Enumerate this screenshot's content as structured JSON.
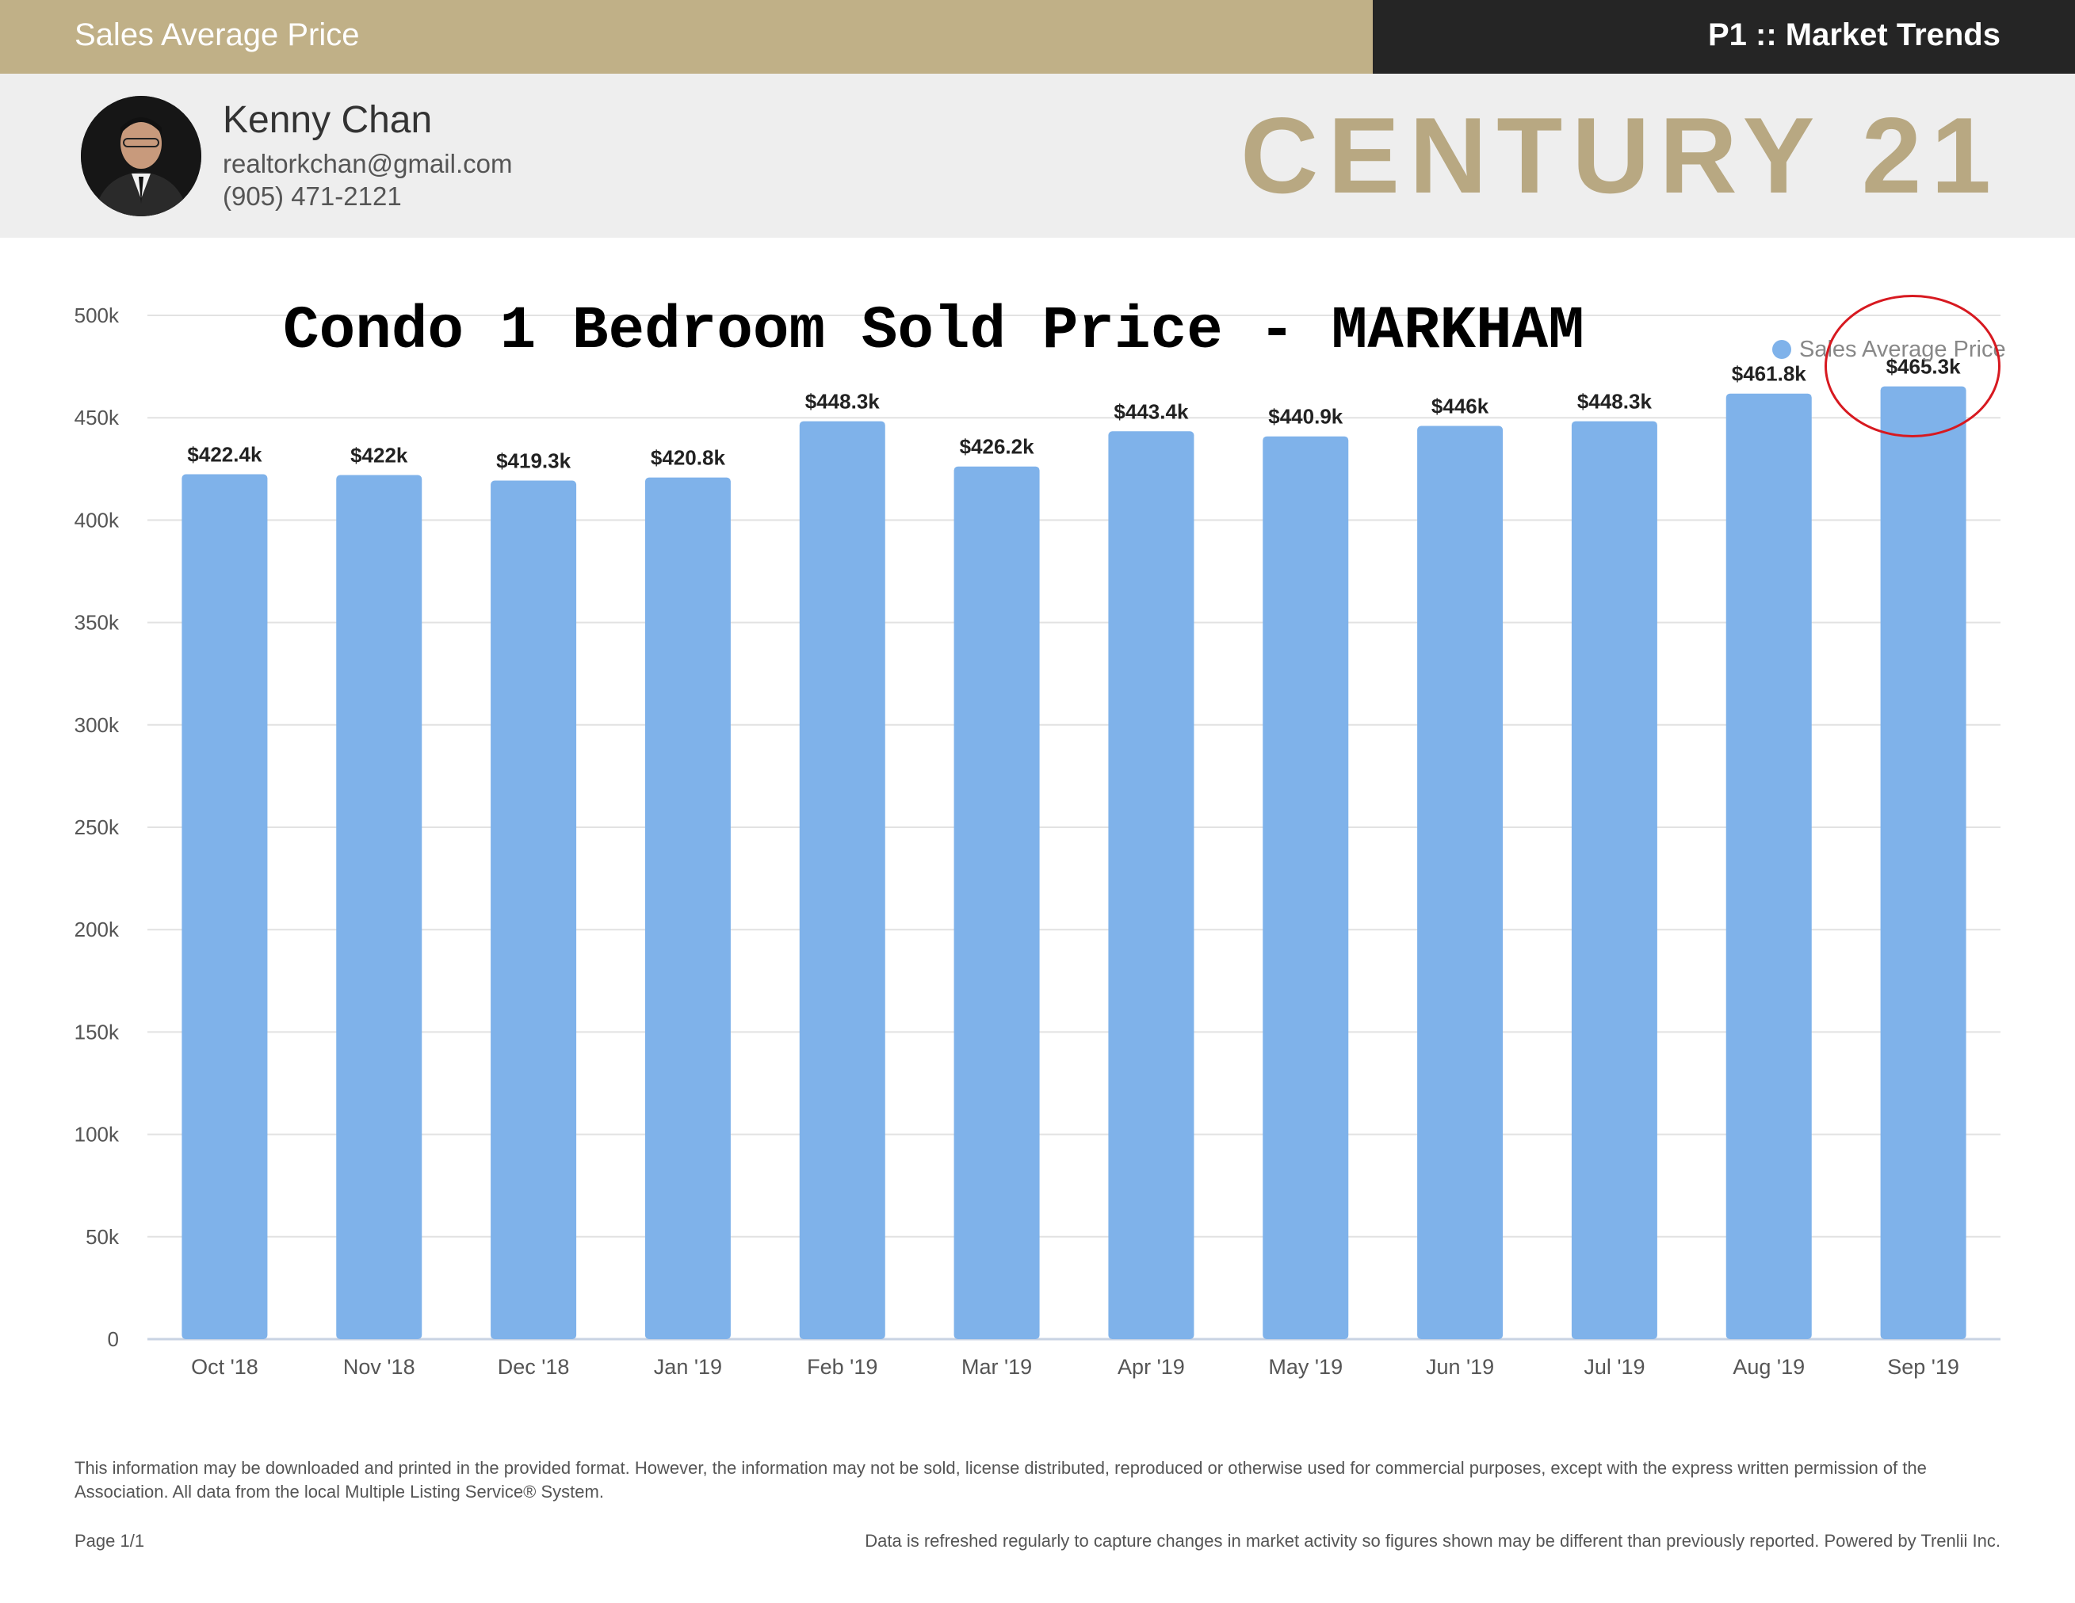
{
  "header": {
    "title": "Sales Average Price",
    "section": "P1 :: Market Trends"
  },
  "agent": {
    "name": "Kenny Chan",
    "email": "realtorkchan@gmail.com",
    "phone": "(905) 471-2121"
  },
  "brand": {
    "logo_text": "CENTURY 21",
    "logo_color": "#b8a882"
  },
  "colors": {
    "gold": "#c0b087",
    "dark": "#252525",
    "bar": "#7fb2ea",
    "highlight": "#d71920"
  },
  "chart_data": {
    "type": "bar",
    "title": "Condo 1 Bedroom Sold Price - MARKHAM",
    "categories": [
      "Oct '18",
      "Nov '18",
      "Dec '18",
      "Jan '19",
      "Feb '19",
      "Mar '19",
      "Apr '19",
      "May '19",
      "Jun '19",
      "Jul '19",
      "Aug '19",
      "Sep '19"
    ],
    "series": [
      {
        "name": "Sales Average Price",
        "values": [
          422400,
          422000,
          419300,
          420800,
          448300,
          426200,
          443400,
          440900,
          446000,
          448300,
          461800,
          465300
        ],
        "labels": [
          "$422.4k",
          "$422k",
          "$419.3k",
          "$420.8k",
          "$448.3k",
          "$426.2k",
          "$443.4k",
          "$440.9k",
          "$446k",
          "$448.3k",
          "$461.8k",
          "$465.3k"
        ]
      }
    ],
    "ylim": [
      0,
      500000
    ],
    "yticks": [
      0,
      50000,
      100000,
      150000,
      200000,
      250000,
      300000,
      350000,
      400000,
      450000,
      500000
    ],
    "ytick_labels": [
      "0",
      "50k",
      "100k",
      "150k",
      "200k",
      "250k",
      "300k",
      "350k",
      "400k",
      "450k",
      "500k"
    ],
    "grid": true,
    "legend_position": "top-right",
    "highlighted_category": "Sep '19"
  },
  "footer": {
    "disclaimer": "This information may be downloaded and printed in the provided format. However, the information may not be sold, license distributed, reproduced or otherwise used for commercial purposes, except with the express written permission of the Association. All data from the local Multiple Listing Service® System.",
    "page": "Page 1/1",
    "refresh_note": "Data is refreshed regularly to capture changes in market activity so figures shown may be different than previously reported. Powered by Trenlii Inc."
  }
}
